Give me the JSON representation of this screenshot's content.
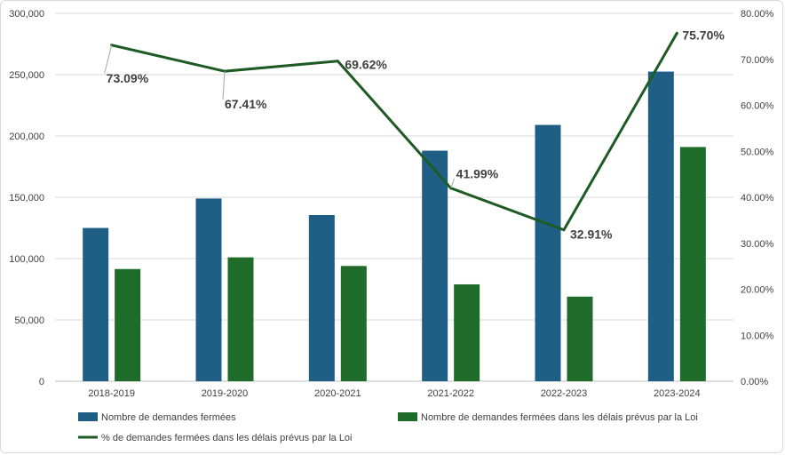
{
  "chart_data": {
    "type": "bar",
    "categories": [
      "2018-2019",
      "2019-2020",
      "2020-2021",
      "2021-2022",
      "2022-2023",
      "2023-2024"
    ],
    "series": [
      {
        "name": "Nombre de demandes fermées",
        "type": "bar",
        "axis": "left",
        "color": "#1f5f85",
        "values": [
          125000,
          149000,
          135500,
          188000,
          209000,
          252500
        ]
      },
      {
        "name": "Nombre de demandes fermées dans les délais prévus par la Loi",
        "type": "bar",
        "axis": "left",
        "color": "#1e6b2a",
        "values": [
          91500,
          101000,
          94000,
          79000,
          69000,
          191000
        ]
      },
      {
        "name": "% de demandes fermées dans les délais prévus par la Loi",
        "type": "line",
        "axis": "right",
        "color": "#1e5a24",
        "values": [
          73.09,
          67.41,
          69.62,
          41.99,
          32.91,
          75.7
        ],
        "labels": [
          "73.09%",
          "67.41%",
          "69.62%",
          "41.99%",
          "32.91%",
          "75.70%"
        ]
      }
    ],
    "y_left": {
      "min": 0,
      "max": 300000,
      "ticks": [
        "0",
        "50,000",
        "100,000",
        "150,000",
        "200,000",
        "250,000",
        "300,000"
      ]
    },
    "y_right": {
      "min": 0,
      "max": 80,
      "ticks": [
        "0.00%",
        "10.00%",
        "20.00%",
        "30.00%",
        "40.00%",
        "50.00%",
        "60.00%",
        "70.00%",
        "80.00%"
      ]
    },
    "grid": true,
    "legend": "bottom"
  }
}
